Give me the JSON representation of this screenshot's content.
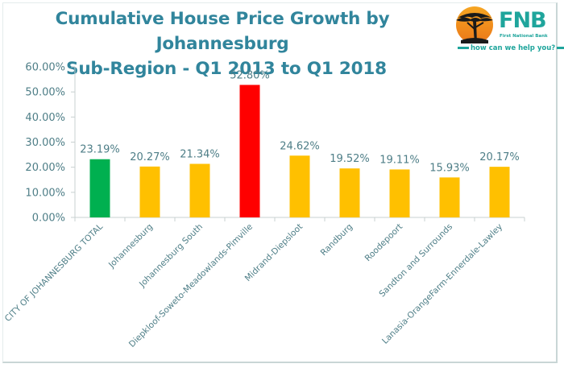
{
  "brand": {
    "name": "FNB",
    "full_name": "First National Bank",
    "tagline": "how can we help you?",
    "color": "#1fa59c"
  },
  "chart_data": {
    "type": "bar",
    "title": "Cumulative House Price Growth by Johannesburg Sub-Region - Q1 2013 to Q1 2018",
    "title_lines": [
      "Cumulative House Price Growth by Johannesburg",
      "Sub-Region - Q1 2013 to Q1 2018"
    ],
    "xlabel": "",
    "ylabel": "",
    "ylim": [
      0,
      60
    ],
    "yticks": [
      0,
      10,
      20,
      30,
      40,
      50,
      60
    ],
    "ytick_labels": [
      "0.00%",
      "10.00%",
      "20.00%",
      "30.00%",
      "40.00%",
      "50.00%",
      "60.00%"
    ],
    "grid": false,
    "legend": "none",
    "categories": [
      "CITY OF JOHANNESBURG TOTAL",
      "Johannesburg",
      "Johannesburg South",
      "Diepkloof-Soweto-Meadowlands-Pimville",
      "Midrand-Diepsloot",
      "Randburg",
      "Roodepoort",
      "Sandton and Surrounds",
      "Lanasia-OrangeFarm-Ennerdale-Lawley"
    ],
    "values": [
      23.19,
      20.27,
      21.34,
      52.8,
      24.62,
      19.52,
      19.11,
      15.93,
      20.17
    ],
    "data_labels": [
      "23.19%",
      "20.27%",
      "21.34%",
      "52.80%",
      "24.62%",
      "19.52%",
      "19.11%",
      "15.93%",
      "20.17%"
    ],
    "bar_colors": [
      "#00b050",
      "#ffc000",
      "#ffc000",
      "#ff0000",
      "#ffc000",
      "#ffc000",
      "#ffc000",
      "#ffc000",
      "#ffc000"
    ],
    "colors": {
      "total": "#00b050",
      "highest": "#ff0000",
      "regions": "#ffc000",
      "text": "#4e7e87",
      "title": "#31859c",
      "axis": "#c8d0d0"
    }
  }
}
